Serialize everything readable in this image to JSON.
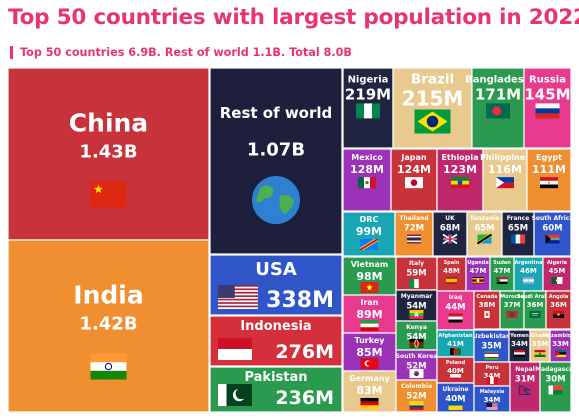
{
  "title": "Top 50 countries with largest population in 2022",
  "subtitle": "Top 50 countries 6.9B. Rest of world 1.1B. Total 8.0B",
  "chart_data": {
    "type": "treemap",
    "unit": "population",
    "nodes": [
      {
        "name": "China",
        "label": "1.43B",
        "value": 1430,
        "color": "#c8323b"
      },
      {
        "name": "India",
        "label": "1.42B",
        "value": 1420,
        "color": "#ef8f2f"
      },
      {
        "name": "Rest of world",
        "label": "1.07B",
        "value": 1070,
        "color": "#1d1f3c"
      },
      {
        "name": "USA",
        "label": "338M",
        "value": 338,
        "color": "#2f55c8"
      },
      {
        "name": "Indonesia",
        "label": "276M",
        "value": 276,
        "color": "#d52f3c"
      },
      {
        "name": "Pakistan",
        "label": "236M",
        "value": 236,
        "color": "#2a9a4f"
      },
      {
        "name": "Nigeria",
        "label": "219M",
        "value": 219,
        "color": "#1f2540"
      },
      {
        "name": "Brazil",
        "label": "215M",
        "value": 215,
        "color": "#e8c98e"
      },
      {
        "name": "Bangladesh",
        "label": "171M",
        "value": 171,
        "color": "#2a9a4f"
      },
      {
        "name": "Russia",
        "label": "145M",
        "value": 145,
        "color": "#e83a8e"
      },
      {
        "name": "Mexico",
        "label": "128M",
        "value": 128,
        "color": "#9b32b8"
      },
      {
        "name": "Japan",
        "label": "124M",
        "value": 124,
        "color": "#c8323b"
      },
      {
        "name": "Ethiopia",
        "label": "123M",
        "value": 123,
        "color": "#c0286e"
      },
      {
        "name": "Philippines",
        "label": "116M",
        "value": 116,
        "color": "#e8c98e"
      },
      {
        "name": "Egypt",
        "label": "111M",
        "value": 111,
        "color": "#ee8f2f"
      },
      {
        "name": "DRC",
        "label": "99M",
        "value": 99,
        "color": "#17a6b2"
      },
      {
        "name": "Thailand",
        "label": "72M",
        "value": 72,
        "color": "#ef8f2f"
      },
      {
        "name": "UK",
        "label": "68M",
        "value": 68,
        "color": "#1f2540"
      },
      {
        "name": "Tanzania",
        "label": "65M",
        "value": 65,
        "color": "#e8c98e"
      },
      {
        "name": "France",
        "label": "65M",
        "value": 65,
        "color": "#1f2540"
      },
      {
        "name": "South Africa",
        "label": "60M",
        "value": 60,
        "color": "#2f55c8"
      },
      {
        "name": "Vietnam",
        "label": "98M",
        "value": 98,
        "color": "#2a9a4f"
      },
      {
        "name": "Iran",
        "label": "89M",
        "value": 89,
        "color": "#e83a8e"
      },
      {
        "name": "Turkey",
        "label": "85M",
        "value": 85,
        "color": "#9b32b8"
      },
      {
        "name": "Germany",
        "label": "83M",
        "value": 83,
        "color": "#e8c98e"
      },
      {
        "name": "Italy",
        "label": "59M",
        "value": 59,
        "color": "#c8323b"
      },
      {
        "name": "Myanmar",
        "label": "54M",
        "value": 54,
        "color": "#1f2540"
      },
      {
        "name": "Kenya",
        "label": "54M",
        "value": 54,
        "color": "#2a9a4f"
      },
      {
        "name": "South Korea",
        "label": "52M",
        "value": 52,
        "color": "#9b32b8"
      },
      {
        "name": "Colombia",
        "label": "52M",
        "value": 52,
        "color": "#ef8f2f"
      },
      {
        "name": "Spain",
        "label": "48M",
        "value": 48,
        "color": "#c8323b"
      },
      {
        "name": "Uganda",
        "label": "47M",
        "value": 47,
        "color": "#9b32b8"
      },
      {
        "name": "Sudan",
        "label": "47M",
        "value": 47,
        "color": "#2a9a4f"
      },
      {
        "name": "Argentina",
        "label": "46M",
        "value": 46,
        "color": "#17a6b2"
      },
      {
        "name": "Algeria",
        "label": "45M",
        "value": 45,
        "color": "#c0286e"
      },
      {
        "name": "Iraq",
        "label": "44M",
        "value": 44,
        "color": "#e83a8e"
      },
      {
        "name": "Afghanistan",
        "label": "41M",
        "value": 41,
        "color": "#17a6b2"
      },
      {
        "name": "Poland",
        "label": "40M",
        "value": 40,
        "color": "#c8323b"
      },
      {
        "name": "Ukraine",
        "label": "40M",
        "value": 40,
        "color": "#2f55c8"
      },
      {
        "name": "Canada",
        "label": "38M",
        "value": 38,
        "color": "#c8323b"
      },
      {
        "name": "Morocco",
        "label": "37M",
        "value": 37,
        "color": "#2a9a4f"
      },
      {
        "name": "Saudi Arabia",
        "label": "36M",
        "value": 36,
        "color": "#2a9a4f"
      },
      {
        "name": "Angola",
        "label": "36M",
        "value": 36,
        "color": "#c8323b"
      },
      {
        "name": "Uzbekistan",
        "label": "35M",
        "value": 35,
        "color": "#2f55c8"
      },
      {
        "name": "Yemen",
        "label": "34M",
        "value": 34,
        "color": "#1f2540"
      },
      {
        "name": "Ghana",
        "label": "33M",
        "value": 33,
        "color": "#e8c98e"
      },
      {
        "name": "Mozambique",
        "label": "33M",
        "value": 33,
        "color": "#9b32b8"
      },
      {
        "name": "Peru",
        "label": "34M",
        "value": 34,
        "color": "#c8323b"
      },
      {
        "name": "Malaysia",
        "label": "34M",
        "value": 34,
        "color": "#2f55c8"
      },
      {
        "name": "Nepal",
        "label": "31M",
        "value": 31,
        "color": "#c0286e"
      },
      {
        "name": "Madagascar",
        "label": "30M",
        "value": 30,
        "color": "#2a9a4f"
      }
    ]
  },
  "icons": {
    "rest_of_world": "globe-icon",
    "flags": "flag-icons"
  }
}
